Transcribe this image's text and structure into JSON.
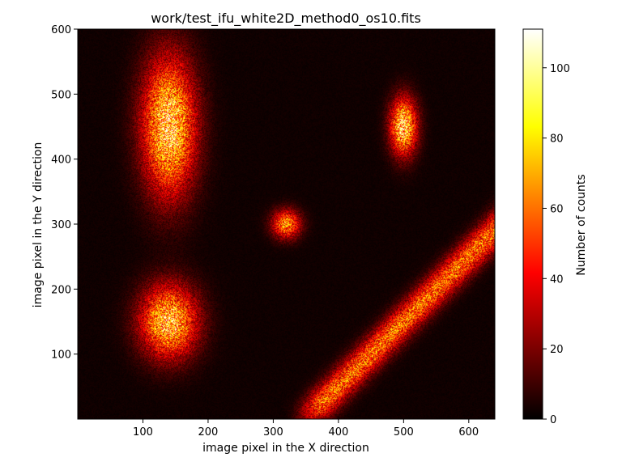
{
  "chart_data": {
    "type": "heatmap",
    "title": "work/test_ifu_white2D_method0_os10.fits",
    "xlabel": "image pixel in the X direction",
    "ylabel": "image pixel in the Y direction",
    "xlim": [
      0,
      640
    ],
    "ylim": [
      0,
      600
    ],
    "xticks": [
      100,
      200,
      300,
      400,
      500,
      600
    ],
    "yticks": [
      100,
      200,
      300,
      400,
      500,
      600
    ],
    "colormap": "hot",
    "colorbar": {
      "label": "Number of counts",
      "range": [
        0,
        111
      ],
      "ticks": [
        0,
        20,
        40,
        60,
        80,
        100
      ]
    },
    "features": [
      {
        "shape": "gaussian",
        "x": 140,
        "y": 450,
        "sigma_x": 28,
        "sigma_y": 72,
        "peak": 80
      },
      {
        "shape": "gaussian",
        "x": 140,
        "y": 150,
        "sigma_x": 30,
        "sigma_y": 38,
        "peak": 75
      },
      {
        "shape": "gaussian",
        "x": 320,
        "y": 300,
        "sigma_x": 15,
        "sigma_y": 15,
        "peak": 60
      },
      {
        "shape": "gaussian",
        "x": 500,
        "y": 450,
        "sigma_x": 14,
        "sigma_y": 30,
        "peak": 80
      },
      {
        "shape": "stripe",
        "from": [
          350,
          0
        ],
        "to": [
          640,
          290
        ],
        "width_sigma": 15,
        "peak": 55
      }
    ]
  }
}
